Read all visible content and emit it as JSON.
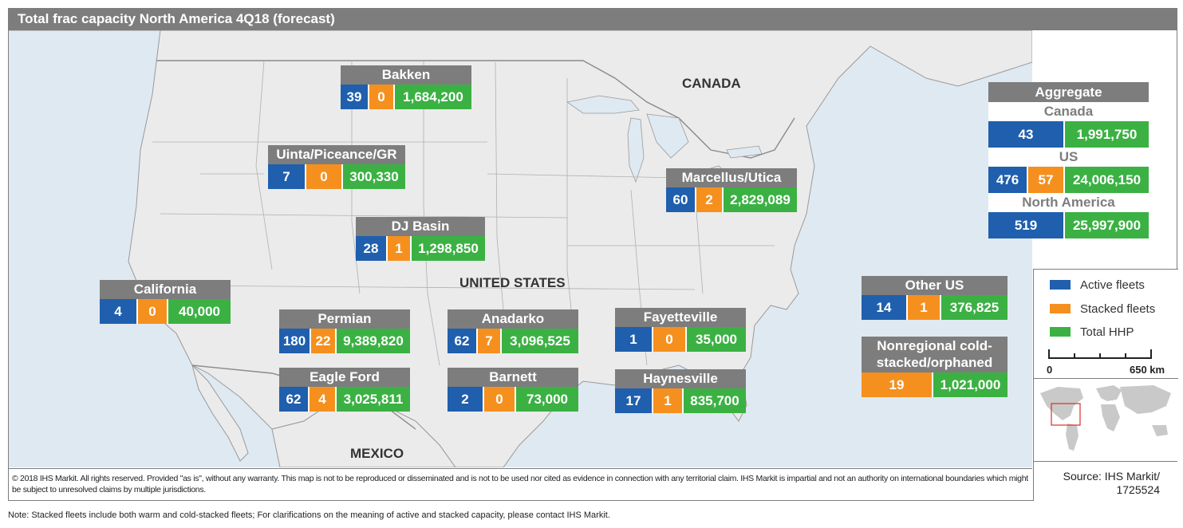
{
  "title": "Total frac capacity North America 4Q18 (forecast)",
  "colors": {
    "active": "#1f5fad",
    "stacked": "#f5901f",
    "total": "#3bb143",
    "header": "#7d7d7d",
    "water": "#dfe9f1",
    "land": "#ebebeb"
  },
  "countries": {
    "canada": "CANADA",
    "us": "UNITED STATES",
    "mexico": "MEXICO"
  },
  "regions": {
    "bakken": {
      "name": "Bakken",
      "active": "39",
      "stacked": "0",
      "hhp": "1,684,200"
    },
    "uinta": {
      "name": "Uinta/Piceance/GR",
      "active": "7",
      "stacked": "0",
      "hhp": "300,330"
    },
    "dj": {
      "name": "DJ Basin",
      "active": "28",
      "stacked": "1",
      "hhp": "1,298,850"
    },
    "california": {
      "name": "California",
      "active": "4",
      "stacked": "0",
      "hhp": "40,000"
    },
    "permian": {
      "name": "Permian",
      "active": "180",
      "stacked": "22",
      "hhp": "9,389,820"
    },
    "eagleford": {
      "name": "Eagle Ford",
      "active": "62",
      "stacked": "4",
      "hhp": "3,025,811"
    },
    "anadarko": {
      "name": "Anadarko",
      "active": "62",
      "stacked": "7",
      "hhp": "3,096,525"
    },
    "barnett": {
      "name": "Barnett",
      "active": "2",
      "stacked": "0",
      "hhp": "73,000"
    },
    "fayetteville": {
      "name": "Fayetteville",
      "active": "1",
      "stacked": "0",
      "hhp": "35,000"
    },
    "haynesville": {
      "name": "Haynesville",
      "active": "17",
      "stacked": "1",
      "hhp": "835,700"
    },
    "marcellus": {
      "name": "Marcellus/Utica",
      "active": "60",
      "stacked": "2",
      "hhp": "2,829,089"
    },
    "otherus": {
      "name": "Other US",
      "active": "14",
      "stacked": "1",
      "hhp": "376,825"
    },
    "nonregional": {
      "name_line1": "Nonregional cold-",
      "name_line2": "stacked/orphaned",
      "stacked": "19",
      "hhp": "1,021,000"
    }
  },
  "aggregate": {
    "title": "Aggregate",
    "canada": {
      "label": "Canada",
      "active": "43",
      "hhp": "1,991,750"
    },
    "us": {
      "label": "US",
      "active": "476",
      "stacked": "57",
      "hhp": "24,006,150"
    },
    "north_america": {
      "label": "North America",
      "active": "519",
      "hhp": "25,997,900"
    }
  },
  "legend": {
    "active": "Active fleets",
    "stacked": "Stacked fleets",
    "total": "Total HHP"
  },
  "scale": {
    "start": "0",
    "end": "650 km"
  },
  "source": {
    "line1": "Source: IHS Markit/",
    "line2": "1725524"
  },
  "copyright": "© 2018 IHS Markit. All rights reserved. Provided \"as is\", without any warranty. This map is not to be reproduced or disseminated and is not to be used nor cited as evidence in connection with any territorial claim. IHS Markit is impartial and not an authority on international boundaries which might be subject to unresolved claims by multiple jurisdictions.",
  "note": "Note: Stacked fleets include both warm and cold-stacked fleets; For clarifications on the meaning of active and stacked capacity, please contact IHS Markit."
}
